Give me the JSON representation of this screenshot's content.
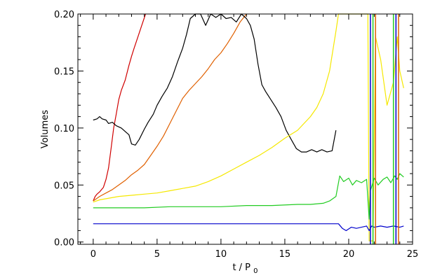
{
  "chart_data": {
    "type": "line",
    "xlabel_main": "t / P",
    "xlabel_sub": "0",
    "ylabel": "Volumes",
    "xlim": [
      -1.2,
      25
    ],
    "ylim": [
      -0.002,
      0.2
    ],
    "xticks": [
      0,
      5,
      10,
      15,
      20,
      25
    ],
    "yticks": [
      0.0,
      0.05,
      0.1,
      0.15,
      0.2
    ],
    "xtick_labels": [
      "0",
      "5",
      "10",
      "15",
      "20",
      "25"
    ],
    "ytick_labels": [
      "0.00",
      "0.05",
      "0.10",
      "0.15",
      "0.20"
    ],
    "grid": false,
    "series": [
      {
        "color": "#d00000",
        "x": [
          0,
          0.15,
          0.3,
          0.5,
          0.8,
          1.0,
          1.2,
          1.4,
          1.6,
          1.8,
          2.0,
          2.2,
          2.5,
          2.8,
          3.0,
          3.2,
          3.5,
          3.8,
          4.1
        ],
        "y": [
          0.036,
          0.04,
          0.042,
          0.044,
          0.048,
          0.055,
          0.065,
          0.082,
          0.1,
          0.112,
          0.125,
          0.133,
          0.142,
          0.155,
          0.163,
          0.17,
          0.18,
          0.19,
          0.2
        ]
      },
      {
        "color": "#e06000",
        "x": [
          0,
          0.5,
          1.0,
          1.5,
          2.0,
          2.5,
          3.0,
          3.5,
          4.0,
          4.5,
          5.0,
          5.5,
          6.0,
          6.5,
          7.0,
          7.5,
          8.0,
          8.5,
          9.0,
          9.5,
          10.0,
          10.5,
          11.0,
          11.5,
          12.0
        ],
        "y": [
          0.036,
          0.04,
          0.043,
          0.046,
          0.05,
          0.054,
          0.059,
          0.063,
          0.068,
          0.076,
          0.084,
          0.093,
          0.104,
          0.115,
          0.126,
          0.133,
          0.139,
          0.145,
          0.152,
          0.16,
          0.166,
          0.174,
          0.183,
          0.193,
          0.2
        ]
      },
      {
        "color": "#000000",
        "x": [
          0,
          0.3,
          0.5,
          0.7,
          1.0,
          1.2,
          1.5,
          1.8,
          2.2,
          2.5,
          2.8,
          3.0,
          3.3,
          3.6,
          4.0,
          4.3,
          4.7,
          5.0,
          5.4,
          5.8,
          6.2,
          6.6,
          7.0,
          7.3,
          7.6,
          8.0,
          8.4,
          8.8,
          9.2,
          9.6,
          10.0,
          10.4,
          10.8,
          11.2,
          11.6,
          12.0,
          12.3,
          12.6,
          12.9,
          13.2,
          13.5,
          13.9,
          14.3,
          14.7,
          15.1,
          15.5,
          15.9,
          16.3,
          16.7,
          17.1,
          17.5,
          17.9,
          18.3,
          18.7,
          19.0
        ],
        "y": [
          0.107,
          0.108,
          0.11,
          0.108,
          0.107,
          0.104,
          0.105,
          0.102,
          0.1,
          0.097,
          0.094,
          0.086,
          0.085,
          0.09,
          0.099,
          0.105,
          0.112,
          0.12,
          0.128,
          0.135,
          0.145,
          0.158,
          0.17,
          0.182,
          0.196,
          0.2,
          0.2,
          0.19,
          0.2,
          0.197,
          0.2,
          0.196,
          0.197,
          0.193,
          0.2,
          0.196,
          0.19,
          0.178,
          0.156,
          0.138,
          0.132,
          0.125,
          0.118,
          0.11,
          0.098,
          0.09,
          0.082,
          0.079,
          0.079,
          0.081,
          0.079,
          0.081,
          0.079,
          0.08,
          0.098
        ]
      },
      {
        "color": "#f5e800",
        "x": [
          0,
          0.5,
          1.0,
          2.0,
          3.0,
          4.0,
          5.0,
          6.0,
          7.0,
          8.0,
          9.0,
          10.0,
          11.0,
          12.0,
          13.0,
          14.0,
          15.0,
          16.0,
          17.0,
          17.5,
          18.0,
          18.5,
          19.0,
          19.2,
          19.5,
          20,
          21,
          21.5,
          21.6,
          21.9,
          22.1,
          22.5,
          23.0,
          23.5,
          23.8,
          24.0,
          24.3
        ],
        "y": [
          0.035,
          0.037,
          0.038,
          0.04,
          0.041,
          0.042,
          0.043,
          0.045,
          0.047,
          0.049,
          0.053,
          0.058,
          0.064,
          0.07,
          0.076,
          0.083,
          0.091,
          0.098,
          0.11,
          0.118,
          0.13,
          0.15,
          0.185,
          0.2,
          0.2,
          0.2,
          0.2,
          0.2,
          0.001,
          0.001,
          0.18,
          0.16,
          0.12,
          0.14,
          0.18,
          0.15,
          0.135
        ]
      },
      {
        "color": "#22cc22",
        "x": [
          0,
          2,
          4,
          6,
          8,
          10,
          12,
          14,
          16,
          17,
          18,
          18.5,
          19.0,
          19.3,
          19.6,
          20.0,
          20.3,
          20.6,
          21.0,
          21.4,
          21.6,
          21.7,
          22.0,
          22.3,
          22.7,
          23.0,
          23.3,
          23.6,
          23.8,
          24.0,
          24.3
        ],
        "y": [
          0.03,
          0.03,
          0.03,
          0.031,
          0.031,
          0.031,
          0.032,
          0.032,
          0.033,
          0.033,
          0.034,
          0.036,
          0.04,
          0.058,
          0.053,
          0.056,
          0.05,
          0.054,
          0.052,
          0.055,
          0.02,
          0.045,
          0.056,
          0.05,
          0.055,
          0.057,
          0.052,
          0.058,
          0.055,
          0.06,
          0.057
        ]
      },
      {
        "color": "#0000cc",
        "x": [
          0,
          2,
          4,
          6,
          8,
          10,
          12,
          14,
          16,
          18,
          19.2,
          19.5,
          19.8,
          20.2,
          20.6,
          21.0,
          21.4,
          21.6,
          21.8,
          22.0,
          22.5,
          23.0,
          23.5,
          24.0,
          24.3
        ],
        "y": [
          0.016,
          0.016,
          0.016,
          0.016,
          0.016,
          0.016,
          0.016,
          0.016,
          0.016,
          0.016,
          0.016,
          0.012,
          0.01,
          0.013,
          0.012,
          0.013,
          0.014,
          0.01,
          0.014,
          0.013,
          0.014,
          0.013,
          0.014,
          0.013,
          0.014
        ]
      }
    ],
    "spikes": [
      {
        "color": "#0000cc",
        "x": 21.7,
        "y0": -0.002,
        "y1": 0.2
      },
      {
        "color": "#22cc22",
        "x": 21.9,
        "y0": -0.002,
        "y1": 0.2
      },
      {
        "color": "#e06000",
        "x": 22.1,
        "y0": -0.002,
        "y1": 0.2
      },
      {
        "color": "#22cc22",
        "x": 23.5,
        "y0": -0.002,
        "y1": 0.2
      },
      {
        "color": "#0000cc",
        "x": 23.7,
        "y0": -0.002,
        "y1": 0.2
      },
      {
        "color": "#e06000",
        "x": 23.9,
        "y0": -0.002,
        "y1": 0.2
      }
    ]
  }
}
